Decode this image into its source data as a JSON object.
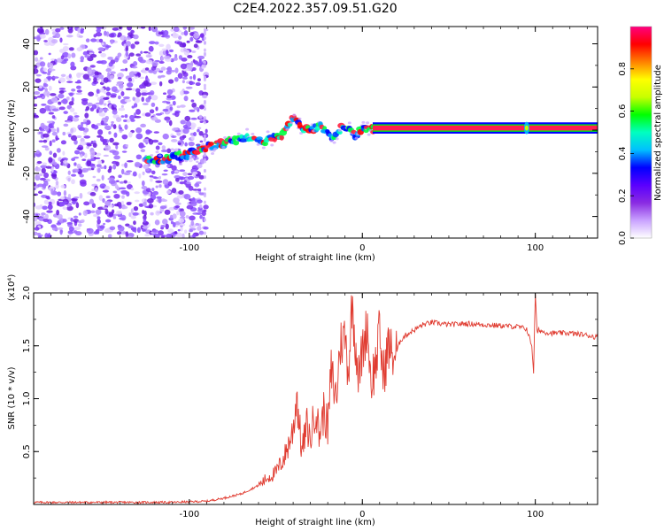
{
  "title": "C2E4.2022.357.09.51.G20",
  "colorbar": {
    "label": "Normalized spectral amplitude",
    "ticks": [
      "0.0",
      "0.2",
      "0.4",
      "0.6",
      "0.8"
    ],
    "tick_values": [
      0.0,
      0.2,
      0.4,
      0.6,
      0.8
    ],
    "range": [
      0,
      1
    ],
    "colors": [
      "#ffffff",
      "#c9a2ff",
      "#8a2be2",
      "#5a00ff",
      "#0000ff",
      "#00c0ff",
      "#00ffc0",
      "#00ff00",
      "#c8ff00",
      "#ffff00",
      "#ff8000",
      "#ff0000",
      "#ff0080"
    ]
  },
  "chart_data": [
    {
      "type": "heatmap",
      "xlabel": "Height of straight line (km)",
      "ylabel": "Frequency (Hz)",
      "xlim": [
        -190,
        136
      ],
      "ylim": [
        -50,
        48
      ],
      "xticks": [
        -100,
        0,
        100
      ],
      "xtick_labels": [
        "-100",
        "0",
        "100"
      ],
      "yticks": [
        -40,
        -20,
        0,
        20,
        40
      ],
      "ytick_labels": [
        "-40",
        "-20",
        "0",
        "20",
        "40"
      ],
      "noise_region_x": [
        -190,
        -90
      ],
      "ridge": {
        "x": [
          -125,
          -112,
          -100,
          -92,
          -84,
          -76,
          -68,
          -62,
          -58,
          -52,
          -46,
          -40,
          -36,
          -30,
          -24,
          -20,
          -16,
          -12,
          -8,
          -4,
          0,
          4,
          8,
          136
        ],
        "y": [
          -14,
          -13,
          -11,
          -8,
          -7,
          -5,
          -4,
          -3,
          -6,
          -4,
          -2,
          6,
          2,
          0,
          2,
          -1,
          -4,
          1,
          0,
          -2,
          1,
          0,
          1,
          1
        ]
      },
      "side_feature": {
        "x": 95,
        "y": 1
      }
    },
    {
      "type": "line",
      "xlabel": "Height of straight line (km)",
      "ylabel": "SNR (10 * v/v)",
      "multiplier": "(x10⁴)",
      "xlim": [
        -190,
        136
      ],
      "ylim": [
        0,
        2.0
      ],
      "xticks": [
        -100,
        0,
        100
      ],
      "xtick_labels": [
        "-100",
        "0",
        "100"
      ],
      "yticks": [
        0.5,
        1.0,
        1.5,
        2.0
      ],
      "ytick_labels": [
        "0.5",
        "1.0",
        "1.5",
        "2.0"
      ],
      "color": "#e03c31",
      "series": [
        {
          "x": [
            -190,
            -150,
            -110,
            -90,
            -80,
            -70,
            -60,
            -55,
            -50,
            -45,
            -40,
            -38,
            -35,
            -32,
            -30,
            -27,
            -25,
            -22,
            -20,
            -18,
            -15,
            -13,
            -10,
            -8,
            -6,
            -4,
            -2,
            0,
            3,
            5,
            8,
            10,
            12,
            15,
            18,
            20,
            22,
            25,
            30,
            35,
            40,
            45,
            50,
            60,
            70,
            80,
            90,
            95,
            98,
            99,
            100,
            101,
            102,
            105,
            110,
            120,
            130,
            136
          ],
          "y": [
            0.02,
            0.02,
            0.02,
            0.03,
            0.06,
            0.1,
            0.18,
            0.25,
            0.3,
            0.45,
            0.7,
            1.05,
            0.5,
            0.75,
            0.6,
            0.95,
            0.65,
            0.9,
            0.7,
            1.25,
            1.0,
            1.5,
            1.6,
            1.25,
            1.9,
            1.55,
            1.2,
            1.45,
            1.7,
            1.15,
            1.35,
            1.65,
            1.2,
            1.5,
            1.4,
            1.45,
            1.55,
            1.6,
            1.65,
            1.7,
            1.72,
            1.71,
            1.7,
            1.71,
            1.7,
            1.69,
            1.68,
            1.66,
            1.5,
            1.25,
            2.0,
            1.62,
            1.65,
            1.63,
            1.62,
            1.62,
            1.6,
            1.58
          ]
        }
      ]
    }
  ]
}
